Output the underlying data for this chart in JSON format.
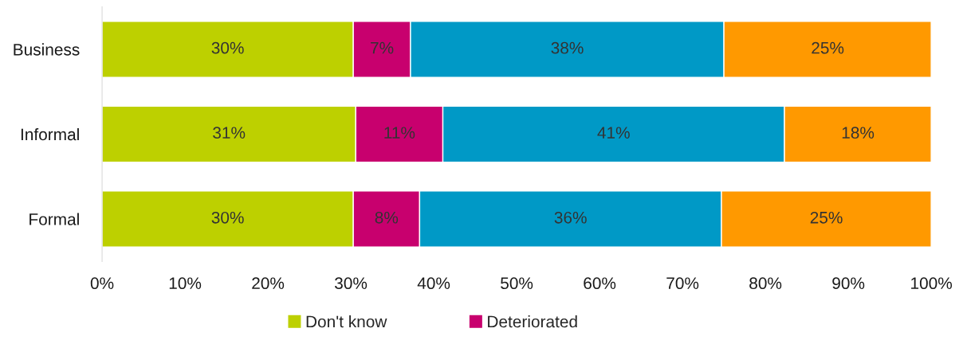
{
  "chart_data": {
    "type": "bar",
    "orientation": "horizontal",
    "stacked": true,
    "categories": [
      "Business",
      "Informal",
      "Formal"
    ],
    "series": [
      {
        "name": "Don't know",
        "color": "#bdd000",
        "values": [
          30.3,
          30.6,
          30.3
        ],
        "value_labels": [
          "30%",
          "31%",
          "30%"
        ]
      },
      {
        "name": "Deteriorated",
        "color": "#c8006e",
        "values": [
          6.9,
          10.5,
          8.0
        ],
        "value_labels": [
          "7%",
          "11%",
          "8%"
        ]
      },
      {
        "color": "#0099c6",
        "values": [
          37.8,
          41.2,
          36.4
        ],
        "value_labels": [
          "38%",
          "41%",
          "36%"
        ]
      },
      {
        "color": "#ff9900",
        "values": [
          25.0,
          17.7,
          25.3
        ],
        "value_labels": [
          "25%",
          "18%",
          "25%"
        ]
      }
    ],
    "xlim": [
      0,
      100
    ],
    "xticks": [
      {
        "value": 0,
        "label": "0%"
      },
      {
        "value": 10,
        "label": "10%"
      },
      {
        "value": 20,
        "label": "20%"
      },
      {
        "value": 30,
        "label": "30%"
      },
      {
        "value": 40,
        "label": "40%"
      },
      {
        "value": 50,
        "label": "50%"
      },
      {
        "value": 60,
        "label": "60%"
      },
      {
        "value": 70,
        "label": "70%"
      },
      {
        "value": 80,
        "label": "80%"
      },
      {
        "value": 90,
        "label": "90%"
      },
      {
        "value": 100,
        "label": "100%"
      }
    ],
    "grid": false,
    "legend": "bottom"
  }
}
